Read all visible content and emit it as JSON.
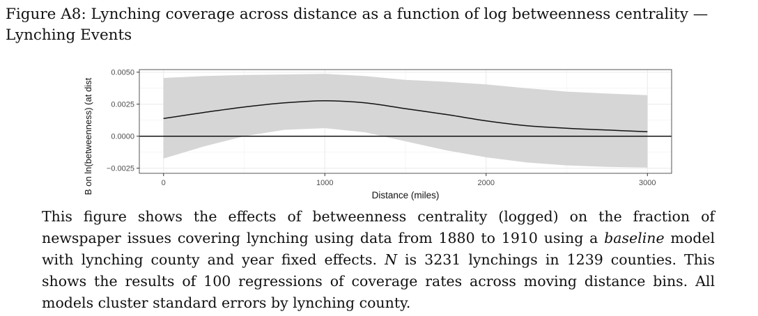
{
  "figure": {
    "title": "Figure A8: Lynching coverage across distance as a function of log betweenness centrality — Lynching Events",
    "caption": {
      "part1": "This figure shows the effects of betweenness centrality (logged) on the fraction of newspaper issues covering lynching using data from 1880 to 1910 using a ",
      "italic_word": "baseline",
      "part2": " model with lynching county and year fixed effects. ",
      "n_symbol": "N",
      "part3": " is 3231 lynchings in 1239 counties. This shows the results of 100 regressions of coverage rates across moving distance bins. All models cluster standard errors by lynching county."
    }
  },
  "chart_data": {
    "type": "line",
    "xlabel": "Distance (miles)",
    "ylabel": "B on ln(betweenness) (at dist",
    "xlim": [
      -150,
      3150
    ],
    "ylim": [
      -0.0029,
      0.0052
    ],
    "x_ticks": [
      0,
      1000,
      2000,
      3000
    ],
    "x_tick_labels": [
      "0",
      "1000",
      "2000",
      "3000"
    ],
    "y_ticks": [
      -0.0025,
      0,
      0.0025,
      0.005
    ],
    "y_tick_labels": [
      "−0.0025",
      "0.0000",
      "0.0025",
      "0.0050"
    ],
    "grid": true,
    "reference_line_y": 0,
    "series": [
      {
        "x": [
          0,
          250,
          500,
          750,
          1000,
          1250,
          1500,
          1750,
          2000,
          2250,
          2500,
          2750,
          3000
        ],
        "y": [
          0.00138,
          0.00185,
          0.00228,
          0.0026,
          0.00277,
          0.0026,
          0.00215,
          0.0017,
          0.0012,
          0.00082,
          0.00062,
          0.00048,
          0.00035
        ],
        "lower": [
          -0.00175,
          -0.0008,
          0.0,
          0.0005,
          0.00063,
          0.0003,
          -0.0004,
          -0.0011,
          -0.00165,
          -0.00205,
          -0.00228,
          -0.0024,
          -0.00245
        ],
        "upper": [
          0.00455,
          0.0047,
          0.00478,
          0.00482,
          0.00487,
          0.0047,
          0.0044,
          0.00425,
          0.00405,
          0.00375,
          0.00348,
          0.00333,
          0.0032
        ]
      }
    ],
    "colors": {
      "ribbon": "#d6d6d6",
      "line": "#111111",
      "grid_major": "#ebebeb",
      "grid_minor": "#f4f4f4",
      "panel_border": "#555555"
    }
  }
}
